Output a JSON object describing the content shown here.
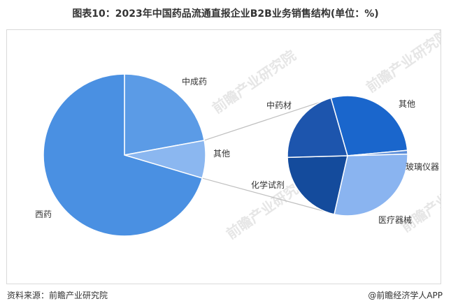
{
  "title": "图表10：2023年中国药品流通直报企业B2B业务销售结构(单位：%)",
  "footer": {
    "source": "资料来源：前瞻产业研究院",
    "brand": "@前瞻经济学人APP"
  },
  "watermark": "前瞻产业研究院",
  "chart_data": [
    {
      "type": "pie",
      "slices": [
        {
          "name": "西药",
          "value": 70.4,
          "color": "#4a90e2"
        },
        {
          "name": "中成药",
          "value": 22.1,
          "color": "#5b9be6"
        },
        {
          "name": "其他",
          "value": 7.5,
          "color": "#8bb7f0"
        }
      ]
    },
    {
      "type": "pie",
      "slices": [
        {
          "name": "其他",
          "value": 28.0,
          "color": "#1a66cc"
        },
        {
          "name": "玻璃仪器",
          "value": 1.0,
          "color": "#5c8ed9"
        },
        {
          "name": "医疗器械",
          "value": 29.0,
          "color": "#8ab4f0"
        },
        {
          "name": "化学试剂",
          "value": 21.0,
          "color": "#144b9c"
        },
        {
          "name": "中药材",
          "value": 21.0,
          "color": "#1d55ad"
        }
      ]
    }
  ]
}
